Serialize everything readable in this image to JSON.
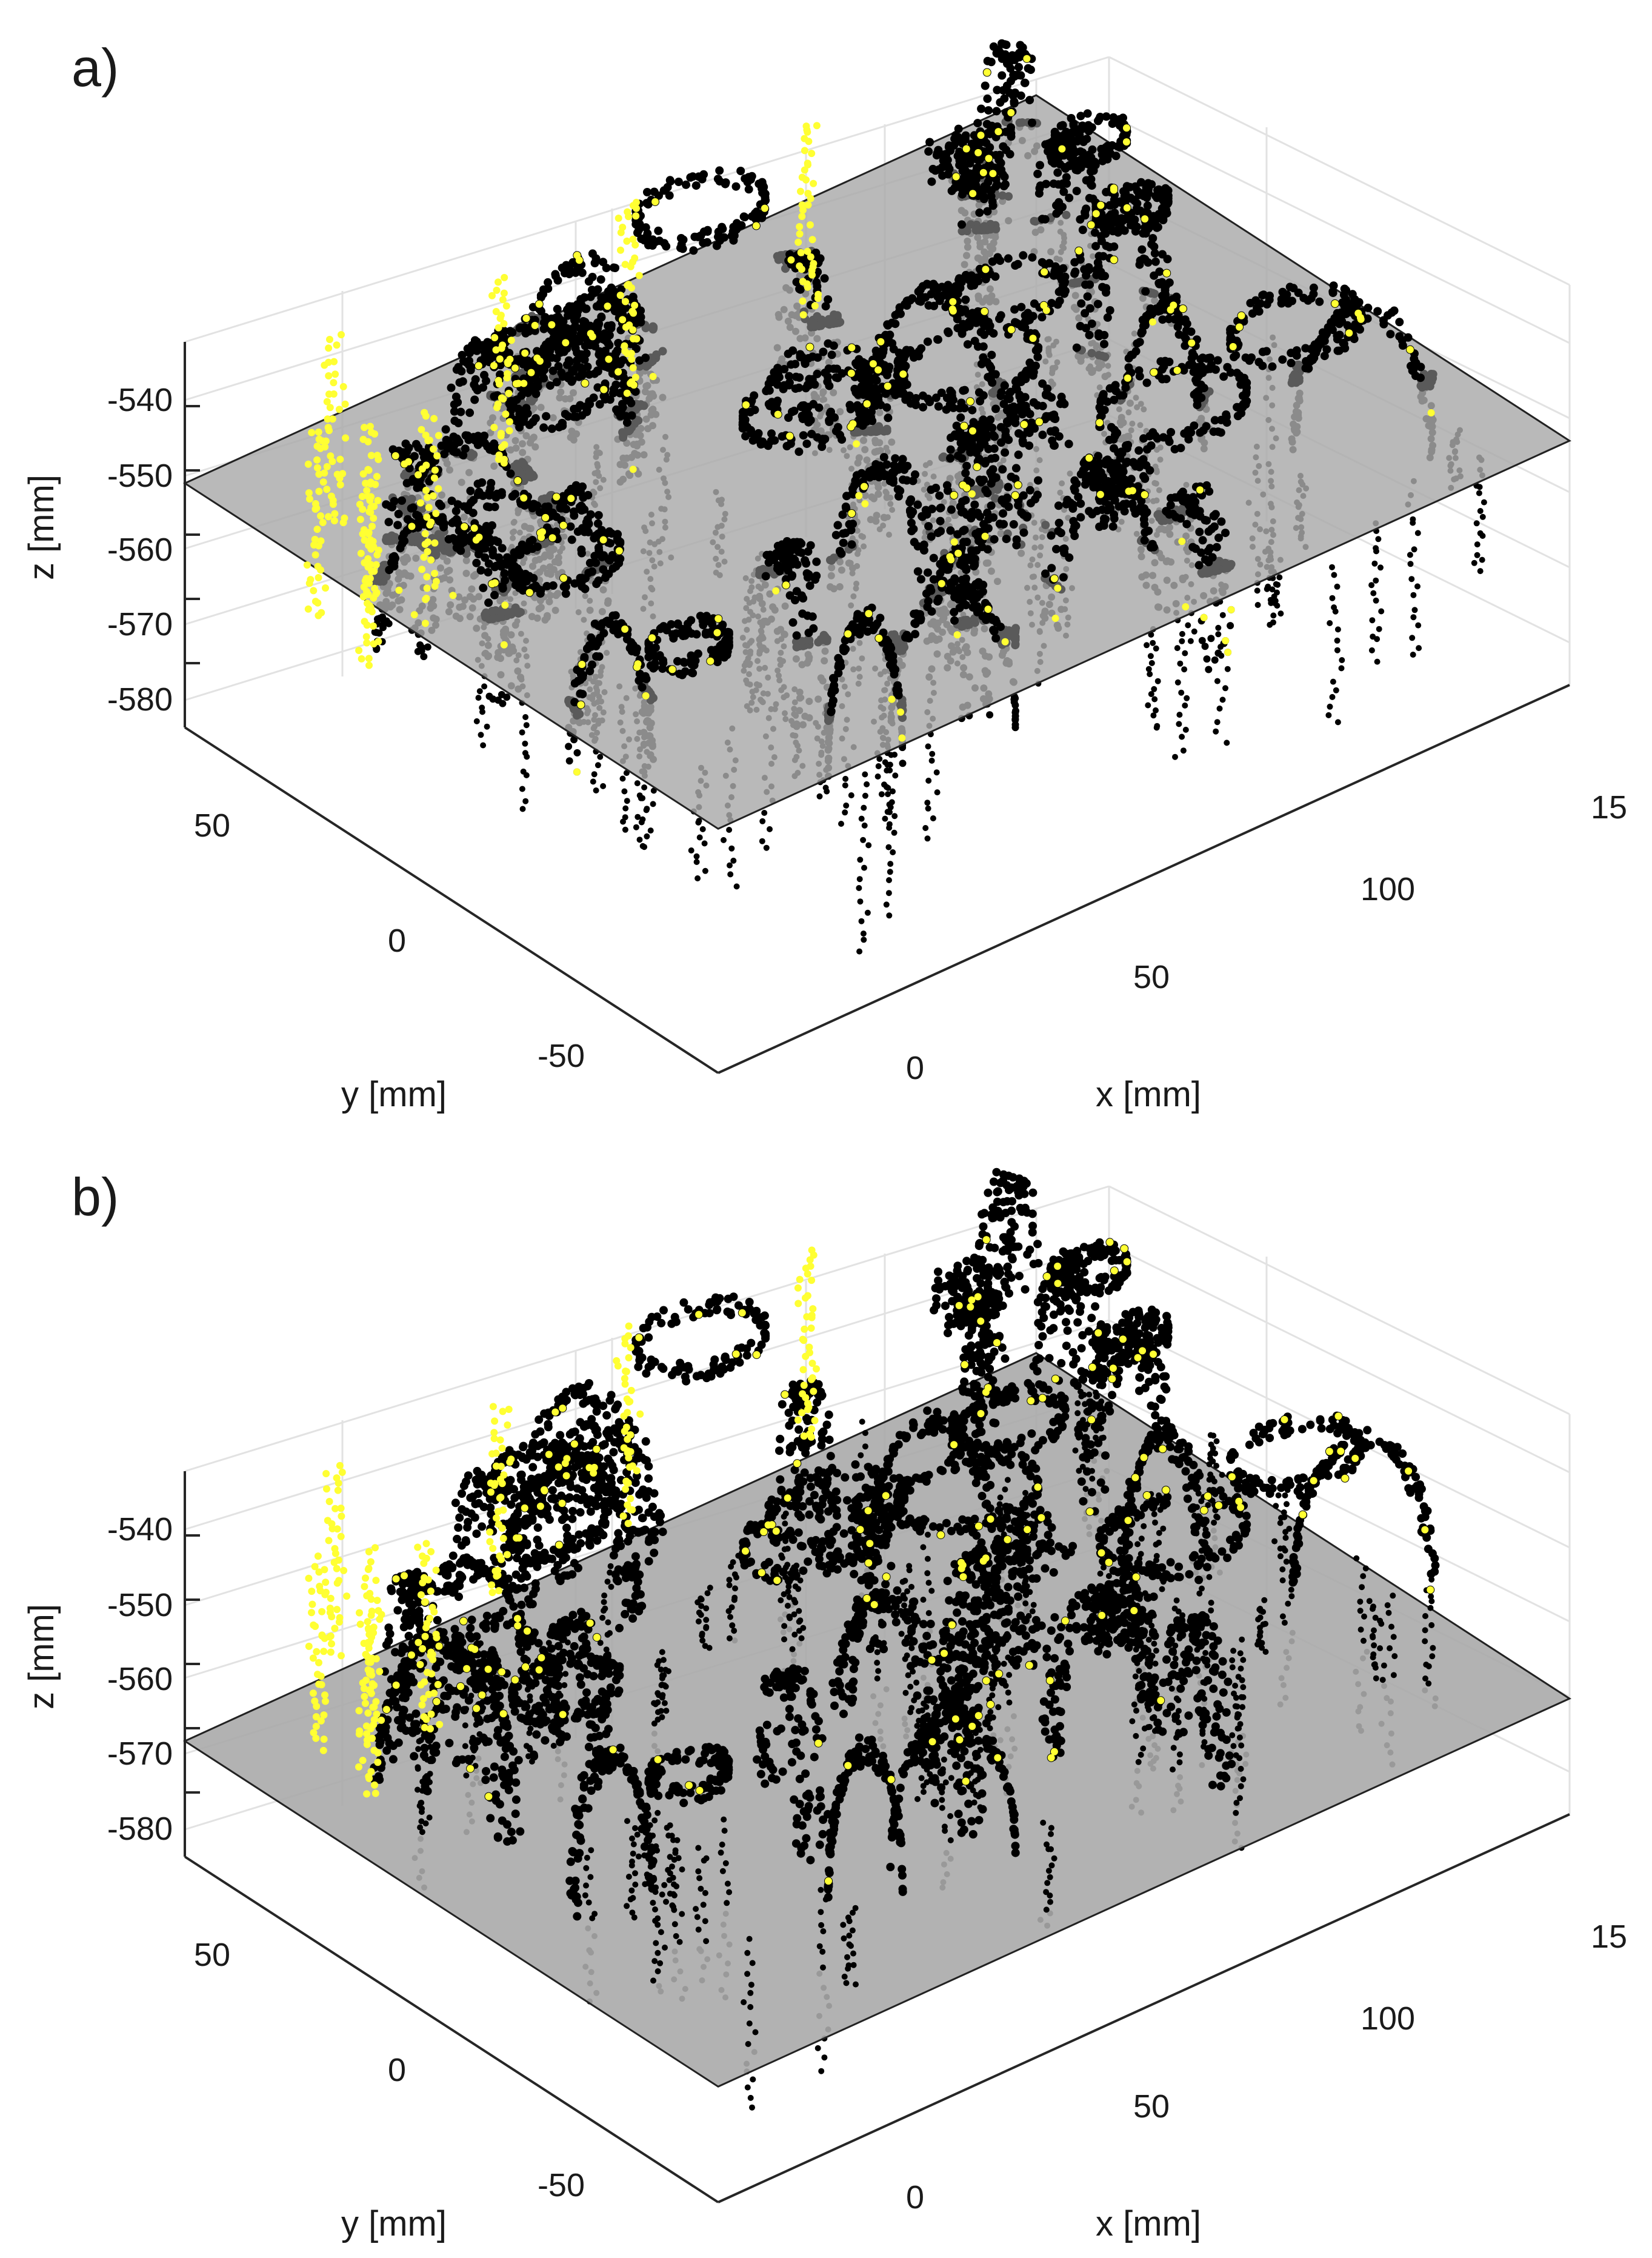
{
  "colors": {
    "points": "#000000",
    "highlight": "#ffff33",
    "shadow": "#5a5a5a",
    "plane": "#aaaaaa",
    "grid": "#e2e2e2",
    "axis": "#262626"
  },
  "chart_data": [
    {
      "type": "scatter",
      "panel_label": "a)",
      "xlabel": "x [mm]",
      "ylabel": "y [mm]",
      "zlabel": "z [mm]",
      "x_ticks": [
        "0",
        "50",
        "100",
        "15"
      ],
      "y_ticks": [
        "50",
        "0",
        "-50"
      ],
      "z_ticks": [
        "-540",
        "-550",
        "-560",
        "-570",
        "-580"
      ],
      "xlim": [
        -20,
        160
      ],
      "ylim": [
        -75,
        75
      ],
      "zlim": [
        -590,
        -530
      ],
      "plane_z": -552,
      "grid": true,
      "legend": "none",
      "series_colors": [
        "black",
        "yellow"
      ]
    },
    {
      "type": "scatter",
      "panel_label": "b)",
      "xlabel": "x [mm]",
      "ylabel": "y [mm]",
      "zlabel": "z [mm]",
      "x_ticks": [
        "0",
        "50",
        "100",
        "15"
      ],
      "y_ticks": [
        "50",
        "0",
        "-50"
      ],
      "z_ticks": [
        "-540",
        "-550",
        "-560",
        "-570",
        "-580"
      ],
      "xlim": [
        -20,
        160
      ],
      "ylim": [
        -75,
        75
      ],
      "zlim": [
        -590,
        -530
      ],
      "plane_z": -572,
      "grid": true,
      "legend": "none",
      "series_colors": [
        "black",
        "yellow"
      ]
    }
  ]
}
